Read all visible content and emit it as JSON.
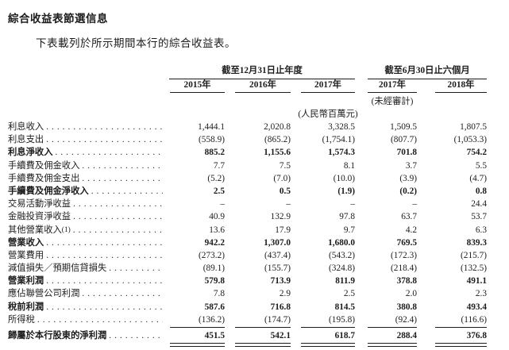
{
  "page": {
    "title": "綜合收益表節選信息",
    "intro": "下表載列於所示期間本行的綜合收益表。"
  },
  "table": {
    "col_groups": [
      {
        "label": "截至12月31日止年度",
        "span": 3
      },
      {
        "label": "截至6月30日止六個月",
        "span": 2
      }
    ],
    "columns": [
      "2015年",
      "2016年",
      "2017年",
      "2017年",
      "2018年"
    ],
    "unaudited_note": "(未經審計)",
    "unit_note": "(人民幣百萬元)",
    "rows": [
      {
        "label": "利息收入",
        "bold": false,
        "values": [
          "1,444.1",
          "2,020.8",
          "3,328.5",
          "1,509.5",
          "1,807.5"
        ]
      },
      {
        "label": "利息支出",
        "bold": false,
        "values": [
          "(558.9)",
          "(865.2)",
          "(1,754.1)",
          "(807.7)",
          "(1,053.3)"
        ]
      },
      {
        "label": "利息淨收入",
        "bold": true,
        "values": [
          "885.2",
          "1,155.6",
          "1,574.3",
          "701.8",
          "754.2"
        ]
      },
      {
        "label": "手續費及佣金收入",
        "bold": false,
        "values": [
          "7.7",
          "7.5",
          "8.1",
          "3.7",
          "5.5"
        ]
      },
      {
        "label": "手續費及佣金支出",
        "bold": false,
        "values": [
          "(5.2)",
          "(7.0)",
          "(10.0)",
          "(3.9)",
          "(4.7)"
        ]
      },
      {
        "label": "手續費及佣金淨收入",
        "bold": true,
        "values": [
          "2.5",
          "0.5",
          "(1.9)",
          "(0.2)",
          "0.8"
        ]
      },
      {
        "label": "交易活動淨收益",
        "bold": false,
        "values": [
          "–",
          "–",
          "–",
          "–",
          "24.4"
        ]
      },
      {
        "label": "金融投資淨收益",
        "bold": false,
        "values": [
          "40.9",
          "132.9",
          "97.8",
          "63.7",
          "53.7"
        ]
      },
      {
        "label": "其他營業收入",
        "sup": "(1)",
        "bold": false,
        "values": [
          "13.6",
          "17.9",
          "9.7",
          "4.2",
          "6.3"
        ]
      },
      {
        "label": "營業收入",
        "bold": true,
        "values": [
          "942.2",
          "1,307.0",
          "1,680.0",
          "769.5",
          "839.3"
        ]
      },
      {
        "label": "營業費用",
        "bold": false,
        "values": [
          "(273.2)",
          "(437.4)",
          "(543.2)",
          "(172.3)",
          "(215.7)"
        ]
      },
      {
        "label": "減值損失／預期信貸損失",
        "bold": false,
        "values": [
          "(89.1)",
          "(155.7)",
          "(324.8)",
          "(218.4)",
          "(132.5)"
        ]
      },
      {
        "label": "營業利潤",
        "bold": true,
        "values": [
          "579.8",
          "713.9",
          "811.9",
          "378.8",
          "491.1"
        ]
      },
      {
        "label": "應佔聯營公司利潤",
        "bold": false,
        "values": [
          "7.8",
          "2.9",
          "2.5",
          "2.0",
          "2.3"
        ]
      },
      {
        "label": "稅前利潤",
        "bold": true,
        "values": [
          "587.6",
          "716.8",
          "814.5",
          "380.8",
          "493.4"
        ]
      },
      {
        "label": "所得稅",
        "bold": false,
        "values": [
          "(136.2)",
          "(174.7)",
          "(195.8)",
          "(92.4)",
          "(116.6)"
        ],
        "rule_below": "single"
      },
      {
        "label": "歸屬於本行股東的淨利潤",
        "bold": true,
        "values": [
          "451.5",
          "542.1",
          "618.7",
          "288.4",
          "376.8"
        ],
        "rule_below": "double"
      }
    ]
  },
  "colors": {
    "text": "#1c1c1c",
    "rule": "#1c1c1c",
    "background": "#ffffff"
  }
}
